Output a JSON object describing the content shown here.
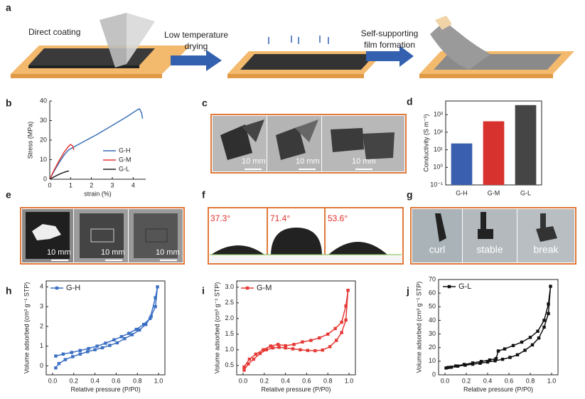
{
  "figure": {
    "panel_labels": [
      "a",
      "b",
      "c",
      "d",
      "e",
      "f",
      "g",
      "h",
      "i",
      "j"
    ],
    "a": {
      "step1": "Direct coating",
      "step2": [
        "Low temperature",
        "drying"
      ],
      "step3": [
        "Self-supporting",
        "film formation"
      ]
    },
    "c": {
      "scale_bars": [
        "10 mm",
        "10 mm",
        "10 mm"
      ]
    },
    "e": {
      "scale_bars": [
        "10 mm",
        "10 mm",
        "10 mm"
      ]
    },
    "f": {
      "angles": [
        "37.3°",
        "71.4°",
        "53.6°"
      ]
    },
    "g": {
      "captions": [
        "curl",
        "stable",
        "break"
      ]
    }
  },
  "chart_data": [
    {
      "type": "line",
      "xlabel": "strain (%)",
      "ylabel": "Stress (MPa)",
      "xlim": [
        0,
        4.6
      ],
      "xticks": [
        0,
        1,
        2,
        3,
        4
      ],
      "ylim": [
        0,
        40
      ],
      "yticks": [
        0,
        10,
        20,
        30,
        40
      ],
      "frame": "axes",
      "legend": "lower right",
      "series": [
        {
          "name": "G-H",
          "color": "#3b6fb6",
          "x": [
            0,
            0.2,
            0.45,
            0.7,
            0.9,
            1.5,
            2.2,
            3.0,
            3.7,
            4.2,
            4.3,
            4.4,
            4.45
          ],
          "values": [
            0,
            4,
            8.5,
            12.5,
            15,
            18.5,
            22.5,
            27.5,
            32,
            35.5,
            36,
            34,
            31
          ]
        },
        {
          "name": "G-M",
          "color": "#e53935",
          "x": [
            0,
            0.2,
            0.45,
            0.7,
            0.9,
            1.0,
            1.1,
            1.15
          ],
          "values": [
            0,
            4.5,
            9.5,
            14,
            16.8,
            17.8,
            17,
            15
          ]
        },
        {
          "name": "G-L",
          "color": "#222222",
          "x": [
            0,
            0.2,
            0.45,
            0.7,
            0.85,
            0.92
          ],
          "values": [
            0,
            1.2,
            2.5,
            3.6,
            4.1,
            4.2
          ]
        }
      ]
    },
    {
      "type": "bar",
      "ylabel": "Conductivity (S m⁻¹)",
      "categories": [
        "G-H",
        "G-M",
        "G-L"
      ],
      "values": [
        23,
        420,
        3500
      ],
      "colors": [
        "#3a5fae",
        "#d8322e",
        "#454545"
      ],
      "log_y": true,
      "ylim": [
        0.1,
        6000
      ],
      "frame": "box",
      "yticks": [
        {
          "value": 0.1,
          "label": "10⁻¹"
        },
        {
          "value": 1,
          "label": "10⁰"
        },
        {
          "value": 10,
          "label": "10¹"
        },
        {
          "value": 100,
          "label": "10²"
        },
        {
          "value": 1000,
          "label": "10³"
        }
      ]
    },
    {
      "type": "line",
      "marker": "square",
      "xlabel": "Relative pressure (P/P0)",
      "ylabel": "Volume adsorbed (cm³ g⁻¹ STP)",
      "xlim": [
        -0.06,
        1.06
      ],
      "ylim": [
        -0.45,
        4.3
      ],
      "frame": "box",
      "legend": "upper left",
      "xticks": [
        {
          "value": 0,
          "label": "0.0"
        },
        0.2,
        0.4,
        0.6,
        0.8,
        {
          "value": 1,
          "label": "1.0"
        }
      ],
      "yticks": [
        0,
        1,
        2,
        3,
        4
      ],
      "series": [
        {
          "name": "G-H",
          "color": "#3b6fc4",
          "x": [
            0.03,
            0.06,
            0.12,
            0.19,
            0.26,
            0.33,
            0.4,
            0.47,
            0.54,
            0.61,
            0.68,
            0.75,
            0.82,
            0.88,
            0.93,
            0.97,
            0.99,
            0.97,
            0.92,
            0.86,
            0.79,
            0.72,
            0.65,
            0.58,
            0.5,
            0.42,
            0.34,
            0.26,
            0.18,
            0.1,
            0.03
          ],
          "values": [
            -0.1,
            0.12,
            0.32,
            0.47,
            0.6,
            0.72,
            0.82,
            0.92,
            1.04,
            1.17,
            1.38,
            1.58,
            1.82,
            2.1,
            2.5,
            3.0,
            4.0,
            3.45,
            2.4,
            2.1,
            1.85,
            1.65,
            1.48,
            1.32,
            1.15,
            1.0,
            0.88,
            0.78,
            0.68,
            0.6,
            0.5
          ]
        }
      ]
    },
    {
      "type": "line",
      "marker": "square",
      "xlabel": "Relative pressure (P/P0)",
      "ylabel": "Volume adsorbed (cm³ g⁻¹ STP)",
      "xlim": [
        -0.06,
        1.06
      ],
      "ylim": [
        0.2,
        3.2
      ],
      "frame": "box",
      "legend": "upper left",
      "xticks": [
        {
          "value": 0,
          "label": "0.0"
        },
        0.2,
        0.4,
        0.6,
        0.8,
        {
          "value": 1,
          "label": "1.0"
        }
      ],
      "yticks": [
        0.5,
        {
          "value": 1,
          "label": "1.0"
        },
        1.5,
        {
          "value": 2,
          "label": "2.0"
        },
        2.5,
        {
          "value": 3,
          "label": "3.0"
        }
      ],
      "series": [
        {
          "name": "G-M",
          "color": "#e53935",
          "x": [
            0.01,
            0.05,
            0.1,
            0.16,
            0.22,
            0.28,
            0.34,
            0.4,
            0.47,
            0.54,
            0.61,
            0.68,
            0.75,
            0.82,
            0.88,
            0.93,
            0.97,
            0.99,
            0.97,
            0.93,
            0.87,
            0.8,
            0.72,
            0.64,
            0.56,
            0.48,
            0.4,
            0.33,
            0.26,
            0.19,
            0.12,
            0.06,
            0.01
          ],
          "values": [
            0.35,
            0.55,
            0.7,
            0.88,
            1.0,
            1.06,
            1.08,
            1.06,
            1.03,
            1.0,
            0.98,
            0.97,
            0.99,
            1.1,
            1.3,
            1.55,
            1.95,
            2.9,
            2.4,
            1.88,
            1.68,
            1.5,
            1.38,
            1.3,
            1.25,
            1.17,
            1.13,
            1.17,
            1.12,
            1.0,
            0.86,
            0.7,
            0.45
          ]
        }
      ]
    },
    {
      "type": "line",
      "marker": "square",
      "xlabel": "Relative pressure (P/P0)",
      "ylabel": "Volume adsorbed (cm³ g⁻¹ STP)",
      "xlim": [
        -0.06,
        1.06
      ],
      "ylim": [
        0,
        70
      ],
      "frame": "box",
      "legend": "upper left",
      "xticks": [
        {
          "value": 0,
          "label": "0.0"
        },
        0.2,
        0.4,
        0.6,
        0.8,
        {
          "value": 1,
          "label": "1.0"
        }
      ],
      "yticks": [
        0,
        10,
        20,
        30,
        40,
        50,
        60,
        70
      ],
      "series": [
        {
          "name": "G-L",
          "color": "#111111",
          "x": [
            0.01,
            0.06,
            0.12,
            0.19,
            0.26,
            0.33,
            0.4,
            0.47,
            0.54,
            0.61,
            0.68,
            0.75,
            0.82,
            0.88,
            0.93,
            0.97,
            0.99,
            0.97,
            0.93,
            0.87,
            0.8,
            0.72,
            0.64,
            0.56,
            0.5,
            0.48,
            0.42,
            0.34,
            0.26,
            0.18,
            0.1,
            0.03
          ],
          "values": [
            5,
            5.6,
            6.4,
            7.1,
            7.8,
            8.5,
            9.4,
            10.3,
            11.4,
            12.8,
            14.7,
            18,
            22,
            27,
            35,
            45,
            65,
            52,
            40,
            32,
            27.5,
            24,
            21.5,
            19,
            17.5,
            12,
            10.9,
            9.8,
            8.7,
            7.6,
            6.5,
            5.4
          ]
        }
      ]
    }
  ]
}
